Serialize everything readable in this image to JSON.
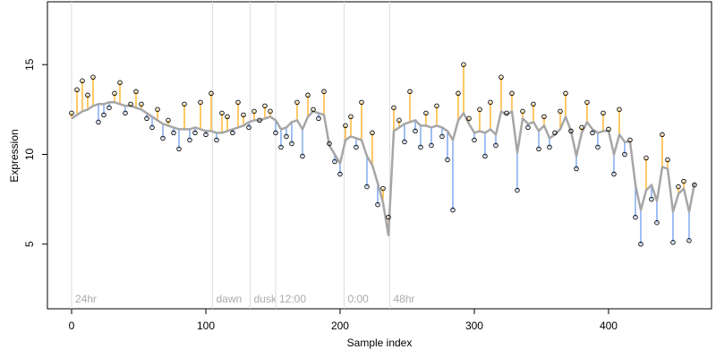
{
  "chart_data": {
    "type": "scatter",
    "xlabel": "Sample index",
    "ylabel": "Expression",
    "xlim": [
      -18,
      476.7
    ],
    "ylim": [
      1.4,
      18.5
    ],
    "xticks": [
      0,
      100,
      200,
      300,
      400
    ],
    "yticks": [
      5,
      10,
      15
    ],
    "point_color": "#000000",
    "fit_color": "#a6a6a6",
    "above_color": "#ffa500",
    "below_color": "#6495ed",
    "marker_color": "#dddddd",
    "markers": [
      {
        "x": 0,
        "label": "24hr"
      },
      {
        "x": 105,
        "label": "dawn"
      },
      {
        "x": 133,
        "label": "dusk"
      },
      {
        "x": 152,
        "label": "12:00"
      },
      {
        "x": 203,
        "label": "0:00"
      },
      {
        "x": 237,
        "label": "48hr"
      }
    ],
    "x": [
      0,
      4,
      8,
      12,
      16,
      20,
      24,
      28,
      32,
      36,
      40,
      44,
      48,
      52,
      56,
      60,
      64,
      68,
      72,
      76,
      80,
      84,
      88,
      92,
      96,
      100,
      104,
      108,
      112,
      116,
      120,
      124,
      128,
      132,
      136,
      140,
      144,
      148,
      152,
      156,
      160,
      164,
      168,
      172,
      176,
      180,
      184,
      188,
      192,
      196,
      200,
      204,
      208,
      212,
      216,
      220,
      224,
      228,
      232,
      236,
      240,
      244,
      248,
      252,
      256,
      260,
      264,
      268,
      272,
      276,
      280,
      284,
      288,
      292,
      296,
      300,
      304,
      308,
      312,
      316,
      320,
      324,
      328,
      332,
      336,
      340,
      344,
      348,
      352,
      356,
      360,
      364,
      368,
      372,
      376,
      380,
      384,
      388,
      392,
      396,
      400,
      404,
      408,
      412,
      416,
      420,
      424,
      428,
      432,
      436,
      440,
      444,
      448,
      452,
      456,
      460,
      464
    ],
    "values": [
      12.3,
      13.6,
      14.1,
      13.3,
      14.3,
      11.8,
      12.2,
      12.6,
      13.4,
      14.0,
      12.3,
      12.8,
      13.5,
      12.8,
      12.0,
      11.5,
      12.5,
      10.9,
      11.9,
      11.2,
      10.3,
      12.8,
      10.8,
      11.2,
      12.9,
      11.1,
      13.4,
      10.8,
      12.3,
      12.1,
      11.2,
      12.9,
      12.2,
      11.5,
      12.4,
      11.9,
      12.7,
      12.4,
      11.2,
      10.4,
      11.0,
      10.6,
      12.9,
      9.9,
      13.3,
      12.5,
      12.0,
      13.5,
      10.6,
      9.6,
      8.9,
      11.6,
      12.1,
      10.4,
      12.9,
      8.2,
      11.2,
      7.2,
      8.1,
      6.5,
      12.6,
      11.9,
      10.7,
      13.5,
      11.3,
      10.4,
      12.3,
      10.5,
      12.7,
      11.0,
      9.7,
      6.9,
      13.4,
      15.0,
      12.0,
      10.8,
      12.5,
      9.9,
      12.9,
      10.5,
      14.3,
      12.3,
      13.4,
      8.0,
      12.4,
      11.5,
      12.8,
      10.3,
      12.1,
      10.4,
      11.2,
      12.4,
      13.4,
      11.3,
      9.2,
      11.5,
      12.9,
      11.2,
      10.4,
      12.3,
      11.4,
      8.9,
      12.5,
      10.0,
      10.8,
      6.5,
      5.0,
      9.8,
      7.5,
      6.2,
      11.1,
      9.7,
      5.1,
      8.2,
      8.5,
      5.2,
      8.3
    ],
    "fit": [
      12.0,
      12.2,
      12.4,
      12.5,
      12.7,
      12.8,
      12.8,
      12.9,
      12.9,
      12.8,
      12.7,
      12.7,
      12.6,
      12.5,
      12.3,
      12.1,
      11.9,
      11.7,
      11.6,
      11.5,
      11.4,
      11.4,
      11.4,
      11.5,
      11.4,
      11.3,
      11.3,
      11.2,
      11.2,
      11.3,
      11.4,
      11.5,
      11.6,
      11.8,
      11.9,
      11.9,
      12.0,
      12.1,
      11.9,
      11.4,
      11.5,
      11.8,
      11.9,
      11.4,
      12.1,
      12.4,
      12.3,
      12.2,
      10.5,
      10.0,
      9.5,
      10.8,
      11.0,
      10.9,
      10.8,
      9.9,
      9.4,
      8.4,
      7.3,
      5.5,
      11.3,
      11.5,
      11.7,
      11.8,
      11.9,
      11.6,
      11.6,
      11.5,
      11.6,
      11.5,
      11.3,
      10.8,
      11.9,
      12.3,
      11.7,
      11.2,
      11.3,
      11.2,
      11.4,
      11.1,
      12.4,
      12.2,
      12.4,
      10.1,
      12.0,
      11.7,
      11.8,
      11.3,
      11.6,
      10.9,
      11.1,
      11.4,
      12.1,
      11.3,
      9.9,
      11.2,
      11.8,
      11.4,
      11.2,
      11.3,
      11.3,
      10.0,
      11.1,
      10.7,
      10.7,
      8.3,
      6.9,
      8.0,
      8.3,
      7.4,
      9.3,
      9.2,
      6.8,
      7.8,
      8.1,
      6.8,
      8.4
    ]
  }
}
